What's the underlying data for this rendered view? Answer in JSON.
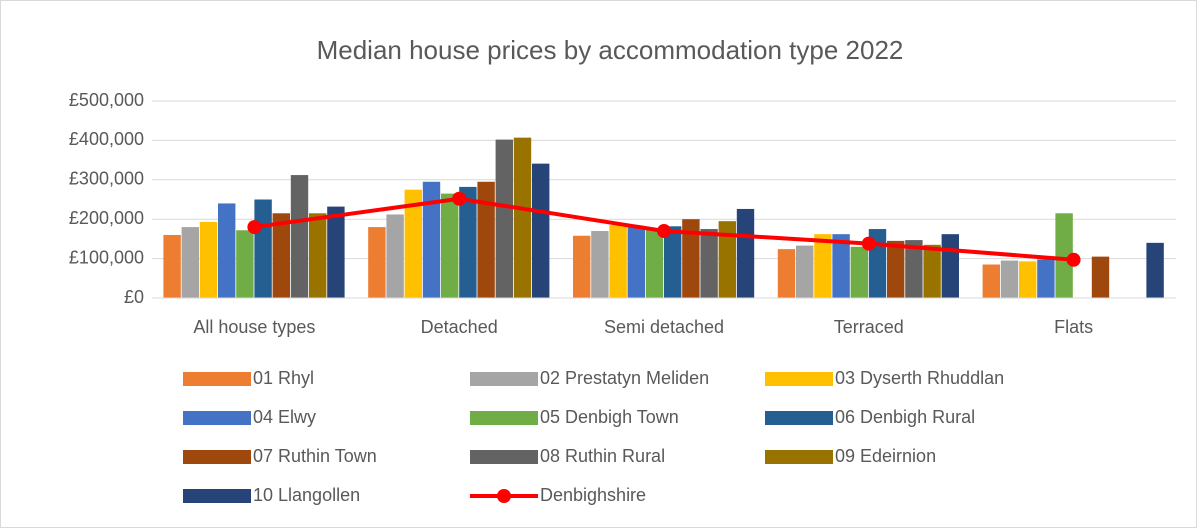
{
  "chart_data": {
    "type": "bar",
    "title": "Median house prices by accommodation type 2022",
    "categories": [
      "All house types",
      "Detached",
      "Semi detached",
      "Terraced",
      "Flats"
    ],
    "series": [
      {
        "name": "01 Rhyl",
        "color": "#ED7D31",
        "values": [
          160000,
          180000,
          158000,
          124000,
          85000
        ]
      },
      {
        "name": "02 Prestatyn Meliden",
        "color": "#A5A5A5",
        "values": [
          180000,
          212000,
          170000,
          133000,
          95000
        ]
      },
      {
        "name": "03 Dyserth Rhuddlan",
        "color": "#FFC000",
        "values": [
          193000,
          275000,
          185000,
          162000,
          93000
        ]
      },
      {
        "name": "04 Elwy",
        "color": "#4472C4",
        "values": [
          240000,
          295000,
          180000,
          162000,
          98000
        ]
      },
      {
        "name": "05 Denbigh Town",
        "color": "#70AD47",
        "values": [
          172000,
          265000,
          175000,
          130000,
          215000
        ]
      },
      {
        "name": "06 Denbigh Rural",
        "color": "#255E91",
        "values": [
          250000,
          282000,
          182000,
          175000,
          null
        ]
      },
      {
        "name": "07 Ruthin Town",
        "color": "#9E480E",
        "values": [
          215000,
          295000,
          200000,
          145000,
          105000
        ]
      },
      {
        "name": "08 Ruthin Rural",
        "color": "#636363",
        "values": [
          312000,
          402000,
          175000,
          147000,
          null
        ]
      },
      {
        "name": "09 Edeirnion",
        "color": "#997300",
        "values": [
          215000,
          407000,
          195000,
          135000,
          null
        ]
      },
      {
        "name": "10 Llangollen",
        "color": "#264478",
        "values": [
          232000,
          341000,
          226000,
          162000,
          140000
        ]
      },
      {
        "name": "Denbighshire",
        "color": "#FF0000",
        "type": "line",
        "values": [
          180000,
          252000,
          170000,
          138000,
          97000
        ]
      }
    ],
    "ylim": [
      0,
      500000
    ],
    "yticks": [
      {
        "value": 0,
        "label": "£0"
      },
      {
        "value": 100000,
        "label": "£100,000"
      },
      {
        "value": 200000,
        "label": "£200,000"
      },
      {
        "value": 300000,
        "label": "£300,000"
      },
      {
        "value": 400000,
        "label": "£400,000"
      },
      {
        "value": 500000,
        "label": "£500,000"
      }
    ],
    "grid": true
  }
}
